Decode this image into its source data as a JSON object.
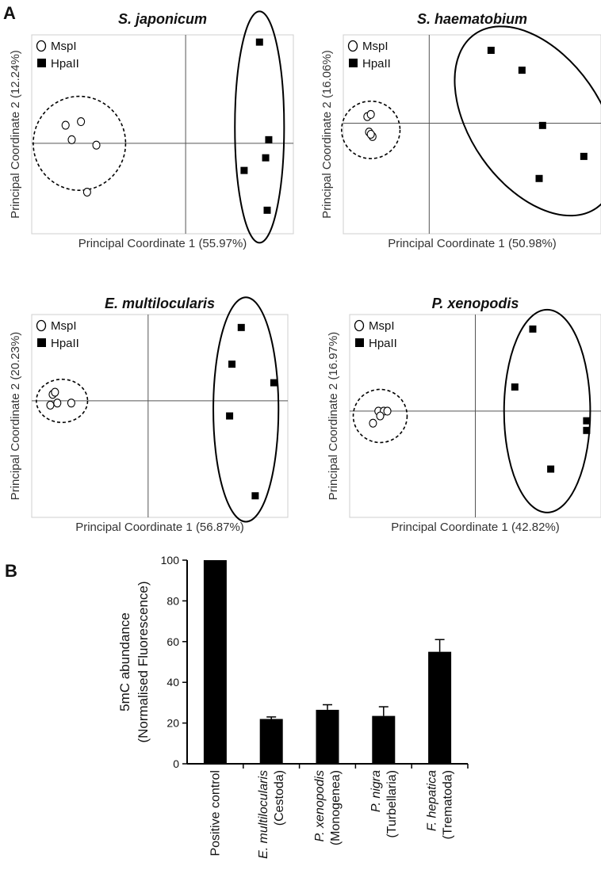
{
  "panel_a_label": "A",
  "panel_b_label": "B",
  "chart_data": [
    {
      "type": "scatter",
      "title": "S. japonicum",
      "xlabel": "Principal Coordinate 1 (55.97%)",
      "ylabel": "Principal Coordinate 2 (12.24%)",
      "xlim": [
        -0.5,
        0.35
      ],
      "ylim": [
        -0.25,
        0.3
      ],
      "legend": [
        "MspI",
        "HpaII"
      ],
      "series": [
        {
          "name": "MspI",
          "marker": "open-circle",
          "points": [
            [
              -0.39,
              0.05
            ],
            [
              -0.34,
              0.06
            ],
            [
              -0.37,
              0.01
            ],
            [
              -0.29,
              -0.005
            ],
            [
              -0.32,
              -0.135
            ]
          ]
        },
        {
          "name": "HpaII",
          "marker": "filled-square",
          "points": [
            [
              0.24,
              0.28
            ],
            [
              0.27,
              0.01
            ],
            [
              0.26,
              -0.04
            ],
            [
              0.19,
              -0.075
            ],
            [
              0.265,
              -0.185
            ]
          ]
        }
      ],
      "ellipses": [
        {
          "series": "MspI",
          "style": "dashed",
          "cx": -0.345,
          "cy": 0.0,
          "rx": 0.15,
          "ry": 0.13
        },
        {
          "series": "HpaII",
          "style": "solid",
          "cx": 0.24,
          "cy": 0.045,
          "rx": 0.08,
          "ry": 0.32
        }
      ]
    },
    {
      "type": "scatter",
      "title": "S. haematobium",
      "xlabel": "Principal Coordinate 1 (50.98%)",
      "ylabel": "Principal Coordinate 2 (16.06%)",
      "xlim": [
        -0.25,
        0.5
      ],
      "ylim": [
        -0.25,
        0.2
      ],
      "legend": [
        "MspI",
        "HpaII"
      ],
      "series": [
        {
          "name": "MspI",
          "marker": "open-circle",
          "points": [
            [
              -0.18,
              0.015
            ],
            [
              -0.17,
              0.02
            ],
            [
              -0.175,
              -0.02
            ],
            [
              -0.165,
              -0.03
            ],
            [
              -0.17,
              -0.025
            ]
          ]
        },
        {
          "name": "HpaII",
          "marker": "filled-square",
          "points": [
            [
              0.18,
              0.165
            ],
            [
              0.27,
              0.12
            ],
            [
              0.33,
              -0.005
            ],
            [
              0.45,
              -0.075
            ],
            [
              0.32,
              -0.125
            ]
          ]
        }
      ],
      "ellipses": [
        {
          "series": "MspI",
          "style": "dashed",
          "cx": -0.17,
          "cy": -0.015,
          "rx": 0.085,
          "ry": 0.065
        },
        {
          "series": "HpaII",
          "style": "solid",
          "cx": 0.31,
          "cy": 0.005,
          "rx": 0.19,
          "ry": 0.24,
          "angle": -35
        }
      ]
    },
    {
      "type": "scatter",
      "title": "E. multilocularis",
      "xlabel": "Principal Coordinate 1 (56.87%)",
      "ylabel": "Principal Coordinate 2 (20.23%)",
      "xlim": [
        -0.25,
        0.3
      ],
      "ylim": [
        -0.27,
        0.2
      ],
      "legend": [
        "MspI",
        "HpaII"
      ],
      "series": [
        {
          "name": "MspI",
          "marker": "open-circle",
          "points": [
            [
              -0.205,
              0.015
            ],
            [
              -0.2,
              0.02
            ],
            [
              -0.21,
              -0.01
            ],
            [
              -0.195,
              -0.005
            ],
            [
              -0.165,
              -0.005
            ]
          ]
        },
        {
          "name": "HpaII",
          "marker": "filled-square",
          "points": [
            [
              0.2,
              0.17
            ],
            [
              0.18,
              0.085
            ],
            [
              0.27,
              0.042
            ],
            [
              0.175,
              -0.035
            ],
            [
              0.23,
              -0.22
            ]
          ]
        }
      ],
      "ellipses": [
        {
          "series": "MspI",
          "style": "dashed",
          "cx": -0.185,
          "cy": 0.0,
          "rx": 0.055,
          "ry": 0.05
        },
        {
          "series": "HpaII",
          "style": "solid",
          "cx": 0.21,
          "cy": -0.02,
          "rx": 0.07,
          "ry": 0.26
        }
      ]
    },
    {
      "type": "scatter",
      "title": "P. xenopodis",
      "xlabel": "Principal Coordinate 1 (42.82%)",
      "ylabel": "Principal Coordinate 2 (16.97%)",
      "xlim": [
        -0.35,
        0.35
      ],
      "ylim": [
        -0.22,
        0.2
      ],
      "legend": [
        "MspI",
        "HpaII"
      ],
      "series": [
        {
          "name": "MspI",
          "marker": "open-circle",
          "points": [
            [
              -0.27,
              0.0
            ],
            [
              -0.255,
              0.0
            ],
            [
              -0.245,
              0.0
            ],
            [
              -0.265,
              -0.01
            ],
            [
              -0.285,
              -0.025
            ]
          ]
        },
        {
          "name": "HpaII",
          "marker": "filled-square",
          "points": [
            [
              0.16,
              0.17
            ],
            [
              0.11,
              0.05
            ],
            [
              0.31,
              -0.02
            ],
            [
              0.31,
              -0.04
            ],
            [
              0.21,
              -0.12
            ]
          ]
        }
      ],
      "ellipses": [
        {
          "series": "MspI",
          "style": "dashed",
          "cx": -0.265,
          "cy": -0.01,
          "rx": 0.075,
          "ry": 0.055
        },
        {
          "series": "HpaII",
          "style": "solid",
          "cx": 0.2,
          "cy": 0.0,
          "rx": 0.12,
          "ry": 0.21
        }
      ]
    },
    {
      "type": "bar",
      "categories": [
        {
          "name": "Positive control",
          "group": ""
        },
        {
          "name": "E. multilocularis",
          "group": "(Cestoda)"
        },
        {
          "name": "P. xenopodis",
          "group": "(Monogenea)"
        },
        {
          "name": "P. nigra",
          "group": "(Turbellaria)"
        },
        {
          "name": "F. hepatica",
          "group": "(Trematoda)"
        }
      ],
      "values": [
        100,
        22,
        26.5,
        23.5,
        55
      ],
      "errors": [
        0,
        1,
        2.5,
        4.5,
        6
      ],
      "ylabel": "5mC abundance",
      "ylabel2": "(Normalised Fluorescence)",
      "ylim": [
        0,
        100
      ],
      "yticks": [
        0,
        20,
        40,
        60,
        80,
        100
      ],
      "color": "#000000"
    }
  ]
}
